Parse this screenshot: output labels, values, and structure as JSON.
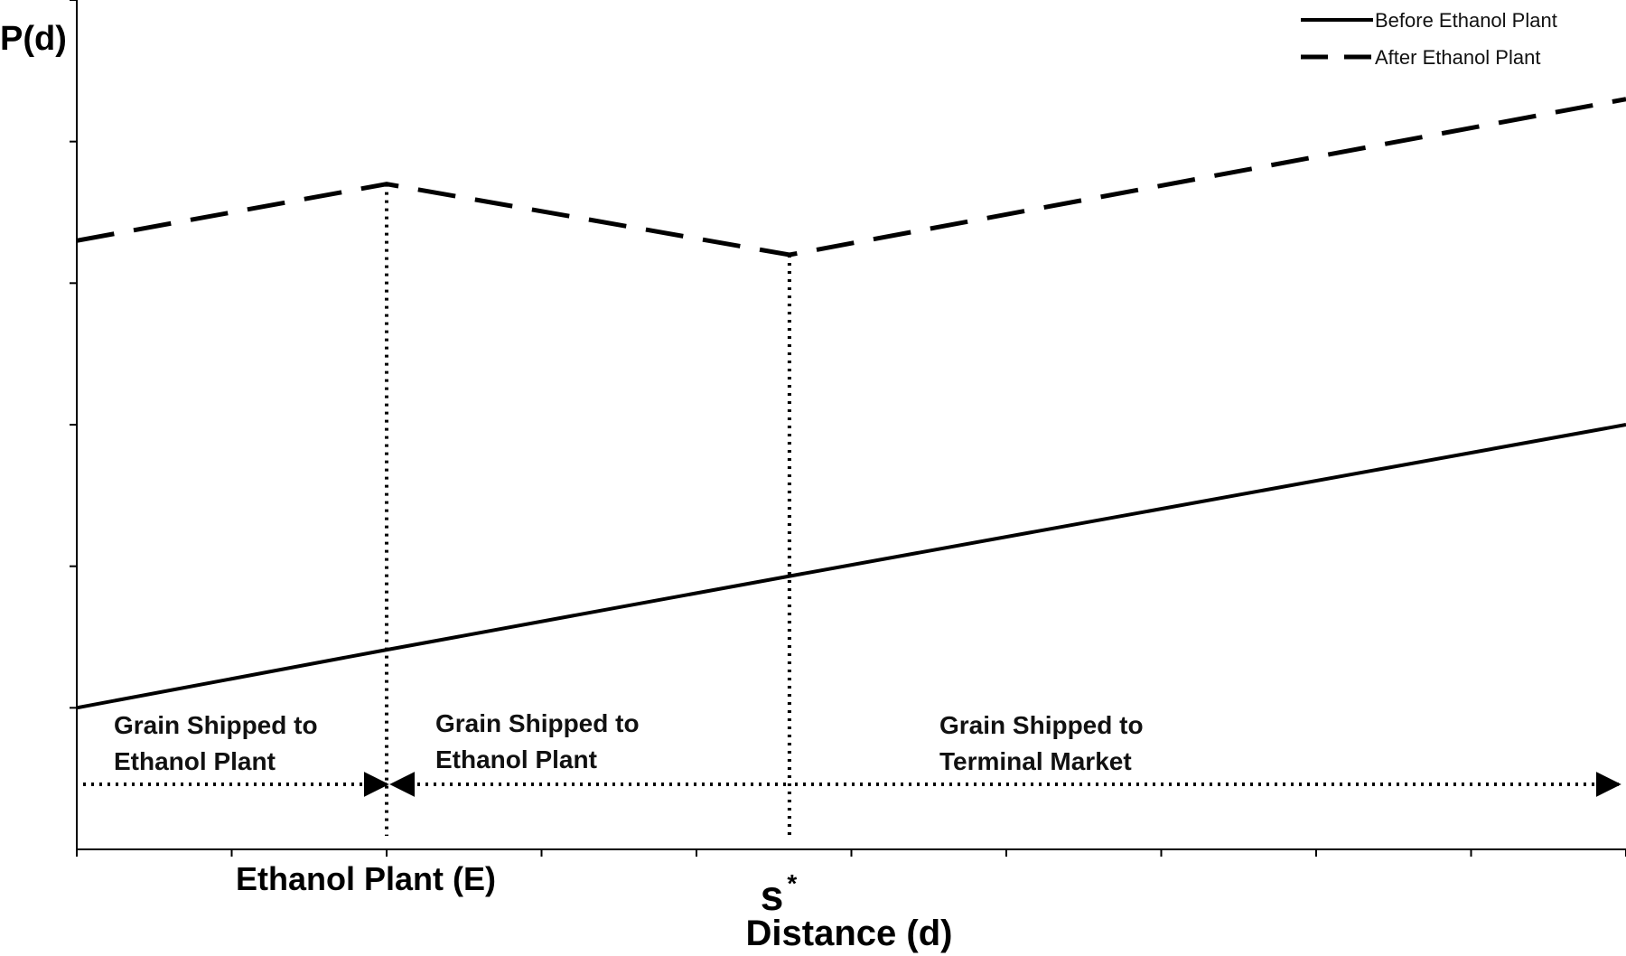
{
  "chart_data": {
    "type": "line",
    "ylabel": "P(d)",
    "xlabel": "Distance (d)",
    "x_markers": [
      {
        "id": "E",
        "label": "Ethanol Plant (E)",
        "x": 2
      },
      {
        "id": "s",
        "label": "s",
        "superscript": "*",
        "x": 4.6
      }
    ],
    "xlim": [
      0,
      10
    ],
    "ylim": [
      0,
      6
    ],
    "x_ticks": [
      0,
      1,
      2,
      3,
      4,
      5,
      6,
      7,
      8,
      9,
      10
    ],
    "y_ticks": [
      1,
      2,
      3,
      4,
      5,
      6
    ],
    "series": [
      {
        "name": "Before Ethanol Plant",
        "style": "solid",
        "x": [
          0,
          2,
          4.6,
          10
        ],
        "y": [
          1.0,
          1.41,
          1.93,
          3.0
        ]
      },
      {
        "name": "After Ethanol Plant",
        "style": "dashed",
        "x": [
          0,
          2,
          4.6,
          10
        ],
        "y": [
          4.3,
          4.7,
          4.2,
          5.3
        ]
      }
    ],
    "legend": {
      "position": "top-right"
    },
    "grid": false,
    "annotations": [
      {
        "id": "r1",
        "line1": "Grain Shipped to",
        "line2": "Ethanol Plant"
      },
      {
        "id": "r2",
        "line1": "Grain Shipped to",
        "line2": "Ethanol Plant"
      },
      {
        "id": "r3",
        "line1": "Grain Shipped to",
        "line2": "Terminal Market"
      }
    ]
  }
}
